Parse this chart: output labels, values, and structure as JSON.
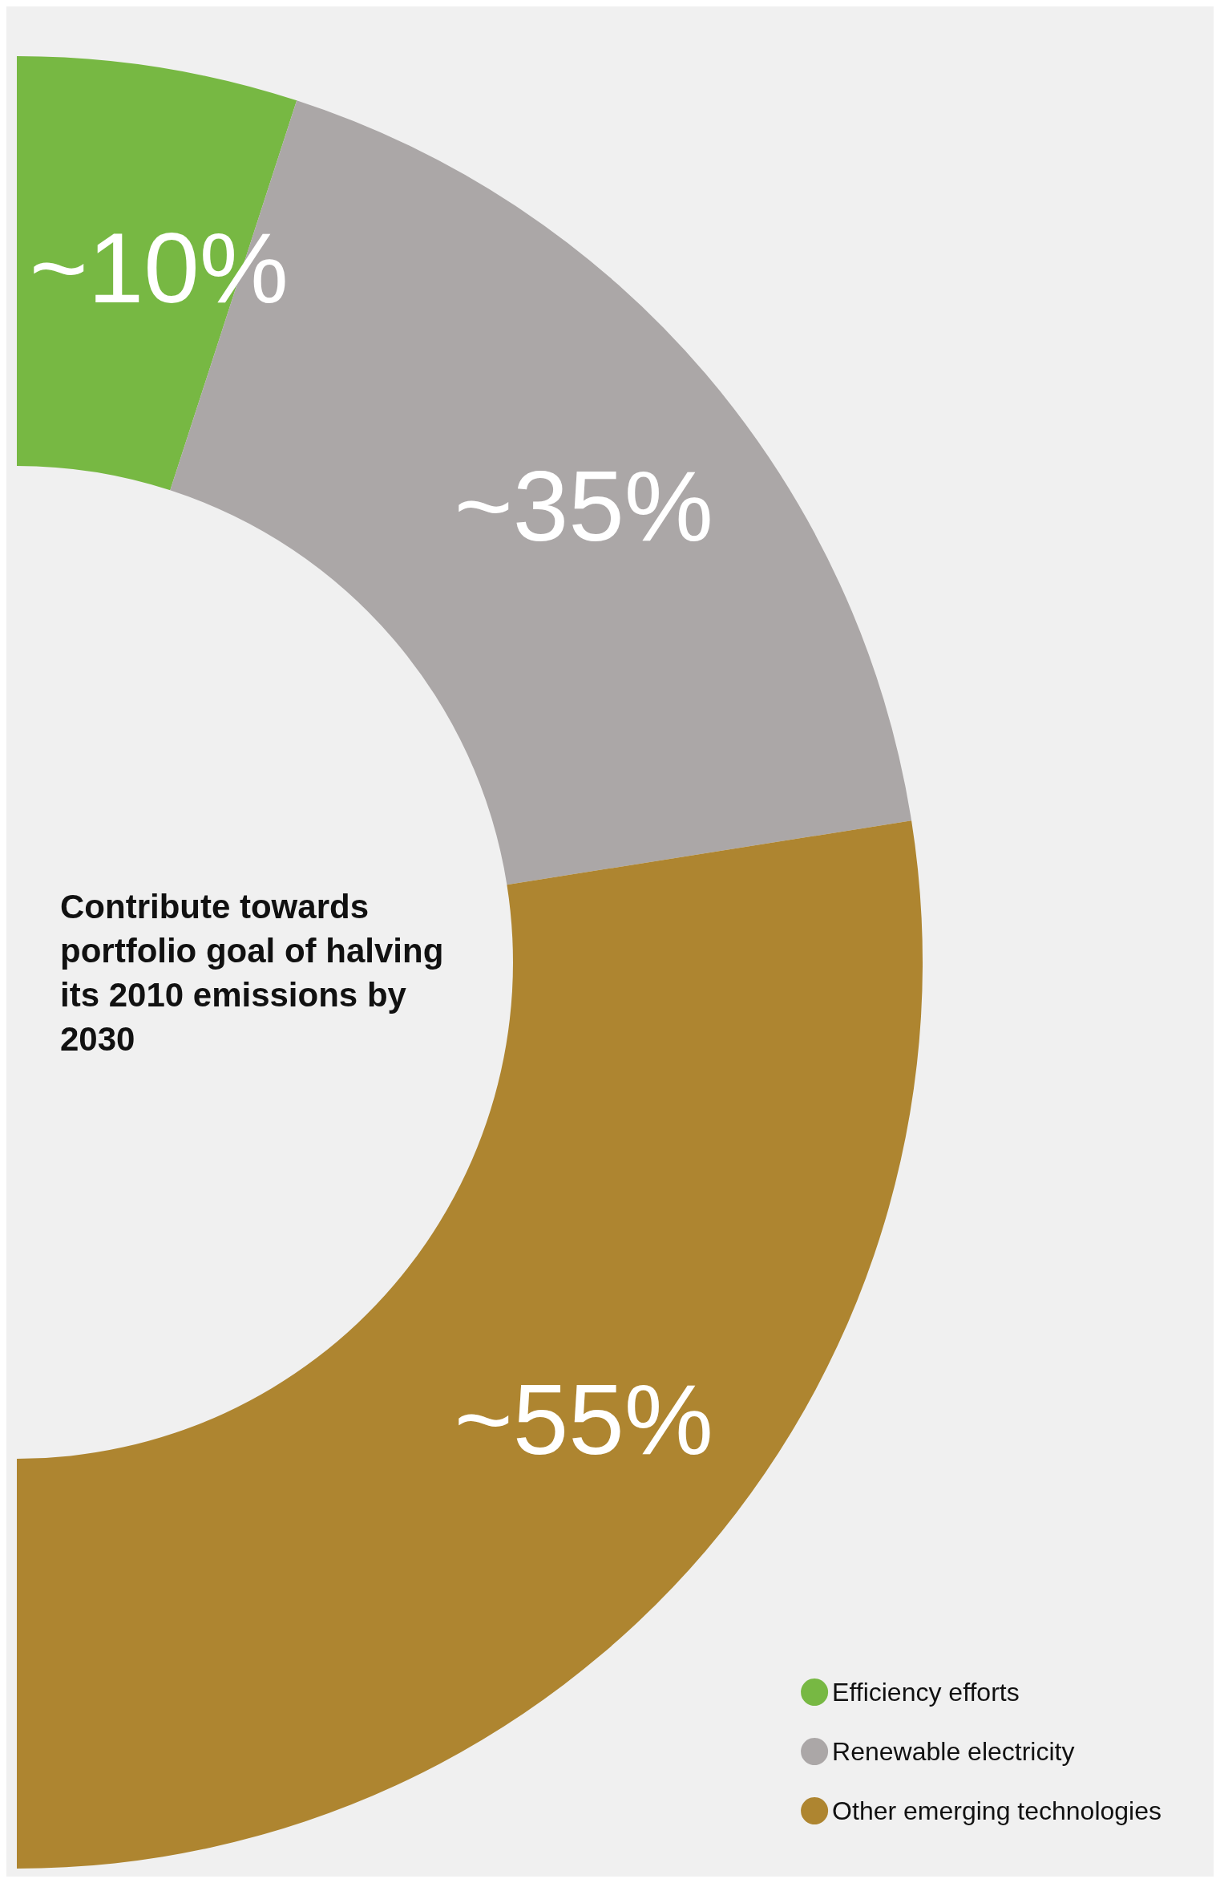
{
  "chart_data": {
    "type": "donut",
    "title": "Contribute towards portfolio goal of halving its 2010 emissions by 2030",
    "categories": [
      "Efficiency efforts",
      "Renewable electricity",
      "Other emerging technologies"
    ],
    "values": [
      10,
      35,
      55
    ],
    "colors": [
      "#77b843",
      "#aba7a7",
      "#ae8530"
    ],
    "value_labels": [
      "~10%",
      "~35%",
      "~55%"
    ],
    "legend": "bottom right"
  }
}
